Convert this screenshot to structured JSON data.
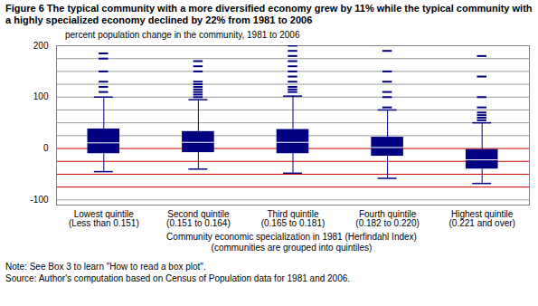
{
  "chart_data": {
    "type": "box",
    "title": "Figure 6  The typical community with a more diversified economy grew by 11% while the typical community with a highly specialized economy declined by 22% from 1981 to 2006",
    "y_label": "percent population change in the community, 1981 to 2006",
    "x_label": "Community economic specialization in 1981 (Herfindahl Index)",
    "x_sublabel": "(communities are grouped into quintiles)",
    "notes": [
      "Note: See Box 3 to learn \"How to read a box plot\".",
      "Source: Author's computation based on Census of Population data for 1981 and 2006."
    ],
    "categories": [
      "Lowest quintile\n(Less than 0.151)",
      "Second quintile\n(0.151 to 0.164)",
      "Third quintile\n(0.165 to 0.181)",
      "Fourth quintile\n(0.182 to 0.220)",
      "Highest quintile\n(0.221 and over)"
    ],
    "boxes": [
      {
        "whisker_low": -45,
        "q1": -10,
        "median": 11,
        "q3": 38,
        "whisker_high": 100,
        "outliers": [
          110,
          120,
          130,
          150,
          175,
          185
        ]
      },
      {
        "whisker_low": -40,
        "q1": -8,
        "median": 12,
        "q3": 33,
        "whisker_high": 95,
        "outliers": [
          100,
          105,
          110,
          115,
          120,
          125,
          130,
          150,
          160,
          170
        ]
      },
      {
        "whisker_low": -48,
        "q1": -10,
        "median": 12,
        "q3": 37,
        "whisker_high": 102,
        "outliers": [
          110,
          115,
          120,
          130,
          140,
          150,
          160,
          170,
          180,
          190,
          200
        ]
      },
      {
        "whisker_low": -58,
        "q1": -15,
        "median": 2,
        "q3": 22,
        "whisker_high": 75,
        "outliers": [
          80,
          100,
          110,
          130,
          150,
          190
        ]
      },
      {
        "whisker_low": -68,
        "q1": -40,
        "median": -22,
        "q3": -2,
        "whisker_high": 50,
        "outliers": [
          55,
          60,
          65,
          70,
          80,
          100,
          140,
          180
        ]
      }
    ],
    "color": "#000080",
    "ylim": [
      -110,
      200
    ],
    "yticks": [
      -100,
      0,
      100,
      200
    ],
    "minor_yticks": [
      -75,
      -50,
      -25,
      25,
      50,
      75,
      125,
      150,
      175
    ],
    "grid": true
  }
}
